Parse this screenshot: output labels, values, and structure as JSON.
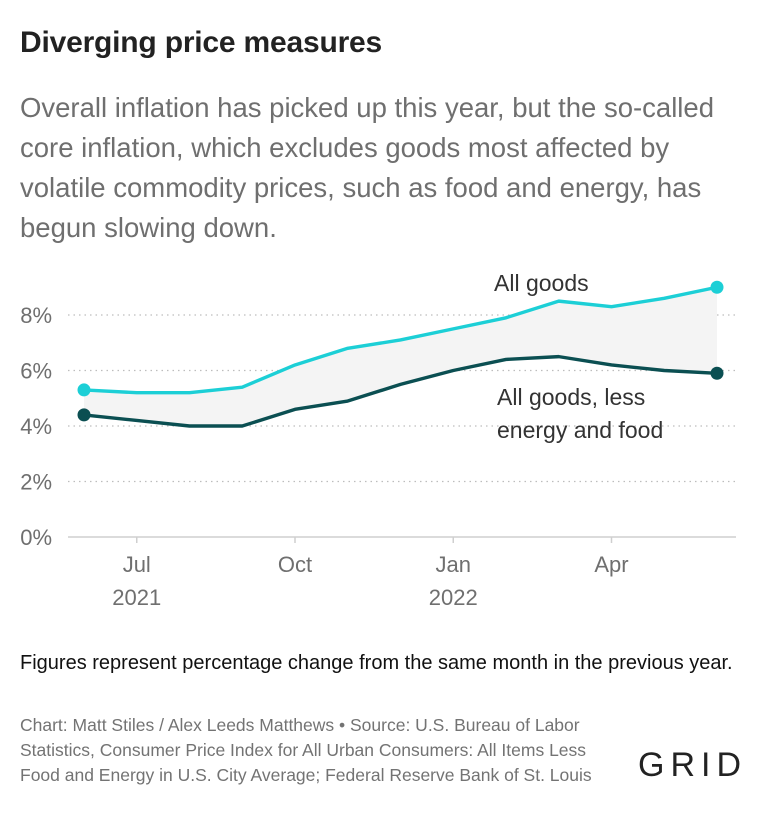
{
  "header": {
    "title": "Diverging price measures",
    "subtitle": "Overall inflation has picked up this year, but the so-called core inflation, which excludes goods most affected by volatile commodity prices, such as food and energy, has begun slowing down."
  },
  "footer": {
    "note": "Figures represent percentage change from the same month in the previous year.",
    "source": "Chart: Matt Stiles / Alex Leeds Matthews • Source: U.S. Bureau of Labor Statistics, Consumer Price Index for All Urban Consumers: All Items Less Food and Energy in U.S. City Average; Federal Reserve Bank of St. Louis",
    "logo": "GRID"
  },
  "colors": {
    "all_goods": "#1ccfd6",
    "core": "#0b4f52",
    "band": "#f4f4f4",
    "grid": "#bdbdbd"
  },
  "chart_data": {
    "type": "line",
    "title": "Diverging price measures",
    "x": [
      "2021-06",
      "2021-07",
      "2021-08",
      "2021-09",
      "2021-10",
      "2021-11",
      "2021-12",
      "2022-01",
      "2022-02",
      "2022-03",
      "2022-04",
      "2022-05",
      "2022-06"
    ],
    "series": [
      {
        "name": "All goods",
        "values": [
          5.3,
          5.2,
          5.2,
          5.4,
          6.2,
          6.8,
          7.1,
          7.5,
          7.9,
          8.5,
          8.3,
          8.6,
          9.0
        ],
        "color": "#1ccfd6"
      },
      {
        "name": "All goods, less energy and food",
        "values": [
          4.4,
          4.2,
          4.0,
          4.0,
          4.6,
          4.9,
          5.5,
          6.0,
          6.4,
          6.5,
          6.2,
          6.0,
          5.9
        ],
        "color": "#0b4f52"
      }
    ],
    "series_labels": [
      "All goods",
      "All goods, less",
      "energy and food"
    ],
    "y_ticks": [
      "0%",
      "2%",
      "4%",
      "6%",
      "8%"
    ],
    "y_tick_values": [
      0,
      2,
      4,
      6,
      8
    ],
    "x_ticks": [
      {
        "at": "2021-07",
        "label": "Jul",
        "year": "2021"
      },
      {
        "at": "2021-10",
        "label": "Oct",
        "year": ""
      },
      {
        "at": "2022-01",
        "label": "Jan",
        "year": "2022"
      },
      {
        "at": "2022-04",
        "label": "Apr",
        "year": ""
      }
    ],
    "ylim": [
      0,
      9
    ],
    "grid": "horizontal dotted",
    "band_between_series": true
  }
}
